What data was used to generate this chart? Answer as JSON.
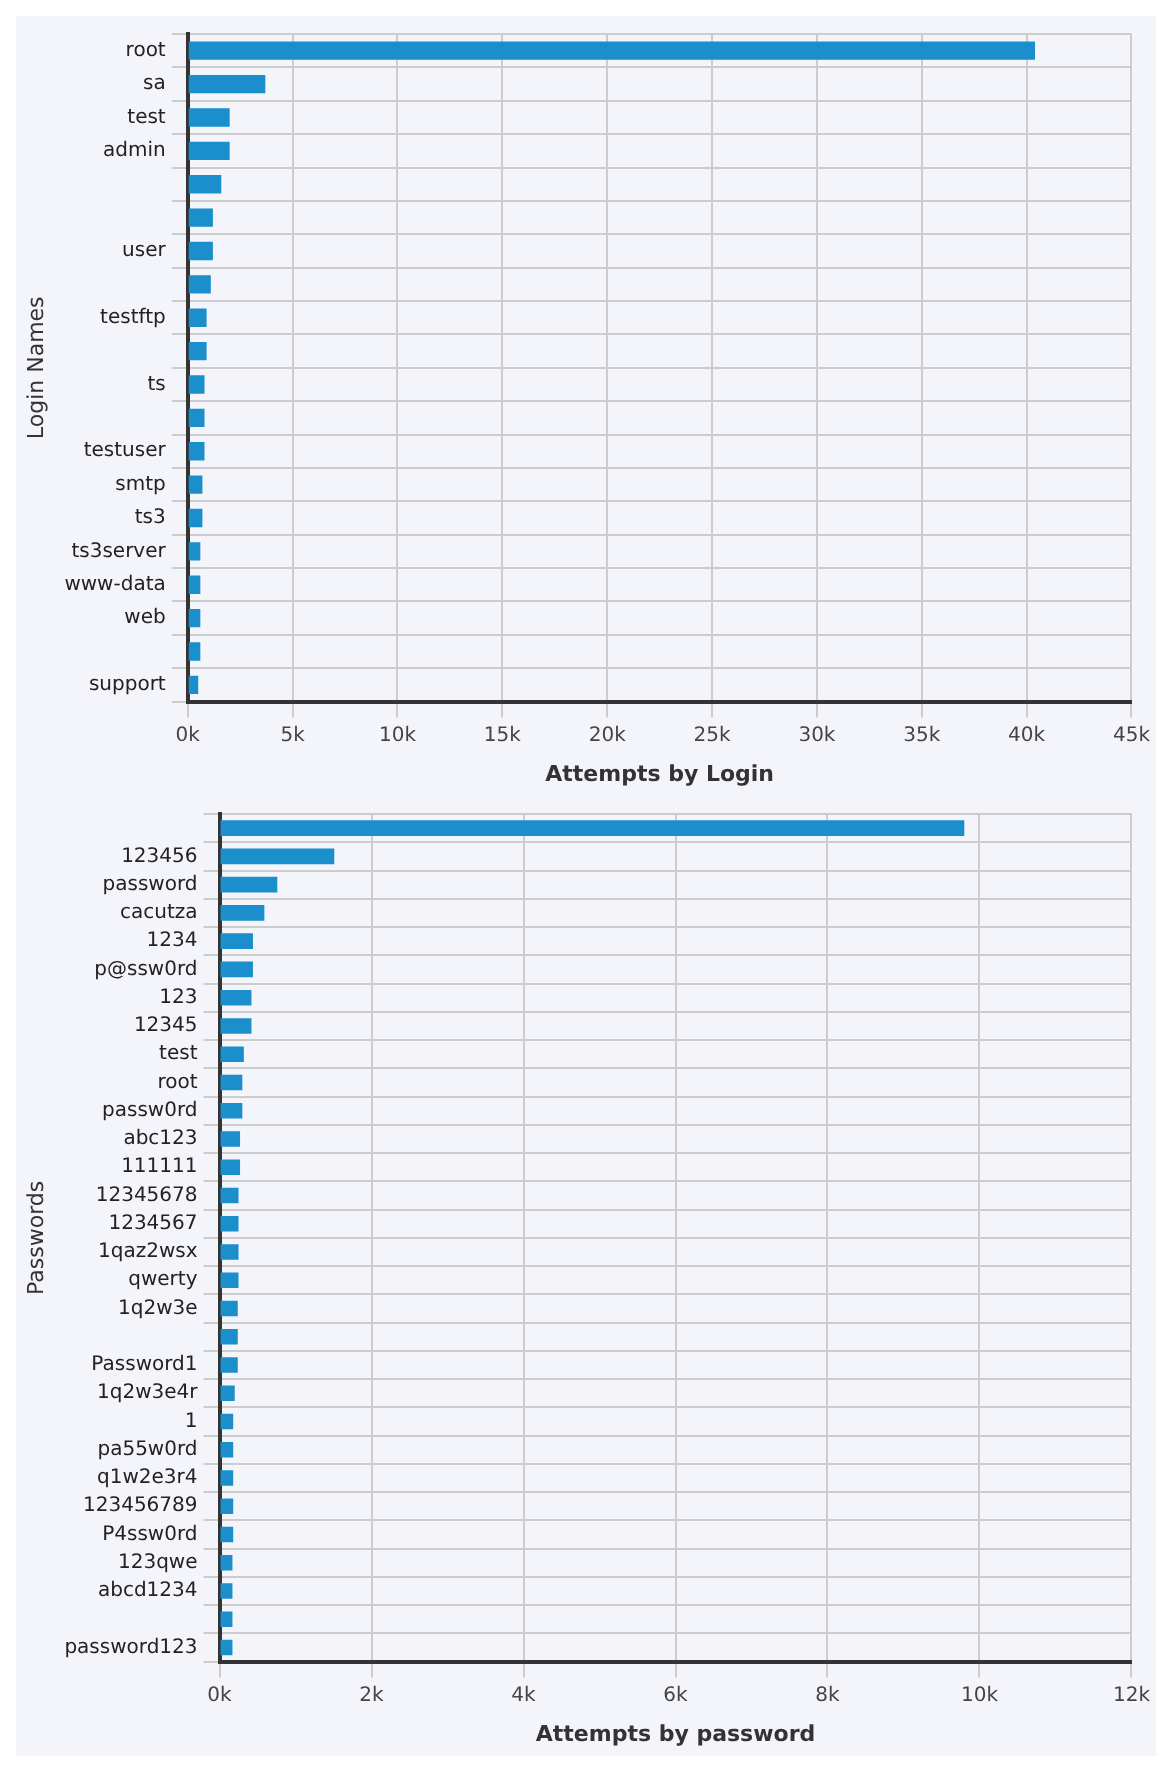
{
  "chart_data": [
    {
      "type": "bar",
      "orientation": "horizontal",
      "xlabel": "Attempts by Login",
      "ylabel": "Login Names",
      "categories": [
        "root",
        "sa",
        "test",
        "admin",
        null,
        null,
        "user",
        null,
        "testftp",
        null,
        "ts",
        null,
        "testuser",
        "smtp",
        "ts3",
        "ts3server",
        "www-data",
        "web",
        null,
        "support"
      ],
      "values": [
        40400,
        3700,
        2000,
        2000,
        1600,
        1200,
        1200,
        1100,
        900,
        900,
        800,
        800,
        800,
        700,
        700,
        600,
        600,
        600,
        600,
        500
      ],
      "color": "#1a8fcc",
      "xlim": [
        0,
        45000
      ],
      "xticks": [
        {
          "value": 0,
          "label": "0k"
        },
        {
          "value": 5000,
          "label": "5k"
        },
        {
          "value": 10000,
          "label": "10k"
        },
        {
          "value": 15000,
          "label": "15k"
        },
        {
          "value": 20000,
          "label": "20k"
        },
        {
          "value": 25000,
          "label": "25k"
        },
        {
          "value": 30000,
          "label": "30k"
        },
        {
          "value": 35000,
          "label": "35k"
        },
        {
          "value": 40000,
          "label": "40k"
        },
        {
          "value": 45000,
          "label": "45k"
        }
      ],
      "grid": true
    },
    {
      "type": "bar",
      "orientation": "horizontal",
      "xlabel": "Attempts by password",
      "ylabel": "Passwords",
      "categories": [
        null,
        "123456",
        "password",
        "cacutza",
        "1234",
        "p@ssw0rd",
        "123",
        "12345",
        "test",
        "root",
        "passw0rd",
        "abc123",
        "111111",
        "12345678",
        "1234567",
        "1qaz2wsx",
        "qwerty",
        "1q2w3e",
        null,
        "Password1",
        "1q2w3e4r",
        "1",
        "pa55w0rd",
        "q1w2e3r4",
        "123456789",
        "P4ssw0rd",
        "123qwe",
        "abcd1234",
        null,
        "password123"
      ],
      "values": [
        9800,
        1510,
        760,
        590,
        440,
        440,
        420,
        420,
        320,
        300,
        300,
        270,
        270,
        250,
        250,
        250,
        250,
        240,
        240,
        240,
        200,
        180,
        180,
        180,
        180,
        180,
        170,
        170,
        170,
        170
      ],
      "color": "#1a8fcc",
      "xlim": [
        0,
        12000
      ],
      "xticks": [
        {
          "value": 0,
          "label": "0k"
        },
        {
          "value": 2000,
          "label": "2k"
        },
        {
          "value": 4000,
          "label": "4k"
        },
        {
          "value": 6000,
          "label": "6k"
        },
        {
          "value": 8000,
          "label": "8k"
        },
        {
          "value": 10000,
          "label": "10k"
        },
        {
          "value": 12000,
          "label": "12k"
        }
      ],
      "grid": true
    }
  ]
}
